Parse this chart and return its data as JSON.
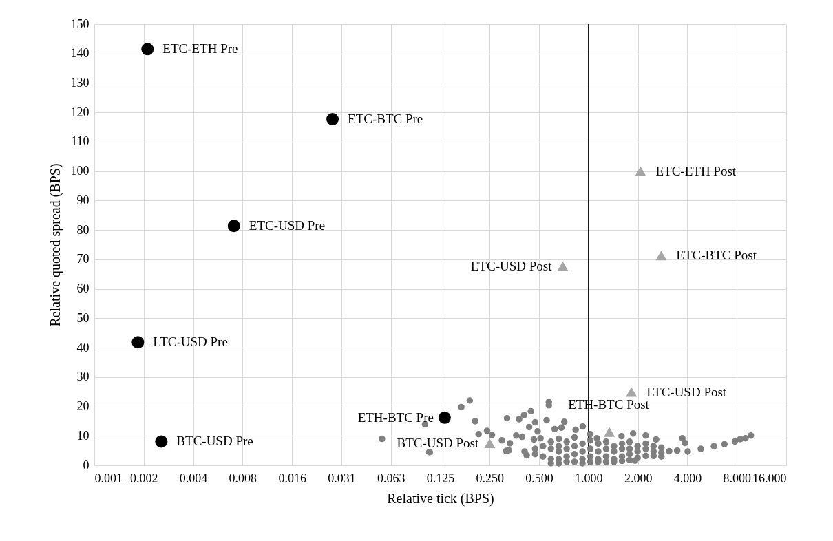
{
  "chart_data": {
    "type": "scatter",
    "xlabel": "Relative tick (BPS)",
    "ylabel": "Relative quoted spread (BPS)",
    "log": "x",
    "grid": true,
    "xlim": [
      0.0009765625,
      16
    ],
    "ylim": [
      0,
      150
    ],
    "xticks": [
      {
        "value": 0.0009765625,
        "label": "0.001"
      },
      {
        "value": 0.001953125,
        "label": "0.002"
      },
      {
        "value": 0.00390625,
        "label": "0.004"
      },
      {
        "value": 0.0078125,
        "label": "0.008"
      },
      {
        "value": 0.015625,
        "label": "0.016"
      },
      {
        "value": 0.03125,
        "label": "0.031"
      },
      {
        "value": 0.0625,
        "label": "0.063"
      },
      {
        "value": 0.125,
        "label": "0.125"
      },
      {
        "value": 0.25,
        "label": "0.250"
      },
      {
        "value": 0.5,
        "label": "0.500"
      },
      {
        "value": 1,
        "label": "1.000"
      },
      {
        "value": 2,
        "label": "2.000"
      },
      {
        "value": 4,
        "label": "4.000"
      },
      {
        "value": 8,
        "label": "8.000"
      },
      {
        "value": 16,
        "label": "16.000"
      }
    ],
    "yticks": [
      0,
      10,
      20,
      30,
      40,
      50,
      60,
      70,
      80,
      90,
      100,
      110,
      120,
      130,
      140,
      150
    ],
    "series": [
      {
        "color": "#7f7f7f",
        "marker": "circle",
        "x": [
          0.0552,
          0.101,
          0.107,
          0.108,
          0.168,
          0.189,
          0.204,
          0.214,
          0.241,
          0.258,
          0.297,
          0.319,
          0.332,
          0.315,
          0.327,
          0.378,
          0.405,
          0.446,
          0.363,
          0.394,
          0.435,
          0.473,
          0.408,
          0.42,
          0.49,
          0.465,
          0.51,
          0.556,
          0.573,
          0.573,
          0.622,
          0.684,
          0.712,
          0.835,
          0.922,
          1.026,
          1.125,
          0.473,
          0.473,
          0.528,
          0.528,
          0.59,
          0.59,
          0.59,
          0.59,
          0.659,
          0.659,
          0.659,
          0.659,
          0.659,
          0.736,
          0.736,
          0.736,
          0.736,
          0.822,
          0.822,
          0.822,
          0.822,
          0.919,
          0.919,
          0.919,
          0.919,
          1.026,
          1.026,
          1.026,
          1.026,
          1.146,
          1.146,
          1.146,
          1.146,
          1.28,
          1.28,
          1.28,
          1.28,
          1.43,
          1.43,
          1.43,
          1.43,
          1.6,
          1.6,
          1.6,
          1.6,
          1.78,
          1.78,
          1.78,
          1.78,
          1.99,
          1.99,
          1.99,
          2.23,
          2.23,
          2.23,
          2.49,
          2.49,
          2.49,
          2.78,
          2.78,
          3.1,
          3.47,
          1.92,
          2.78,
          4.02,
          5.81,
          7.8,
          9.05,
          9.75,
          1.59,
          1.87,
          2.23,
          2.58,
          3.73,
          3.87,
          4.83,
          6.73,
          8.4
        ],
        "values": [
          9.0,
          13.9,
          4.5,
          4.5,
          19.8,
          22.0,
          15.0,
          10.6,
          11.7,
          10.3,
          8.5,
          16.0,
          7.5,
          4.9,
          5.1,
          15.7,
          17.1,
          18.4,
          10.1,
          9.7,
          13.0,
          14.6,
          4.7,
          3.4,
          11.5,
          8.8,
          9.2,
          15.3,
          21.5,
          20.4,
          12.3,
          12.8,
          14.8,
          12.1,
          13.2,
          10.6,
          9.2,
          5.6,
          3.8,
          6.5,
          3.0,
          8.0,
          5.6,
          2.1,
          0.7,
          9.0,
          6.5,
          4.7,
          2.1,
          0.7,
          8.0,
          5.6,
          3.0,
          1.2,
          9.5,
          6.5,
          3.8,
          1.2,
          7.4,
          4.7,
          2.1,
          0.7,
          8.5,
          5.6,
          3.0,
          1.2,
          7.4,
          4.7,
          2.1,
          1.2,
          8.0,
          5.6,
          3.0,
          1.2,
          6.5,
          4.7,
          2.1,
          1.2,
          7.4,
          5.6,
          3.0,
          1.5,
          8.0,
          5.6,
          3.8,
          1.8,
          6.5,
          4.7,
          2.5,
          7.4,
          5.6,
          3.2,
          6.5,
          4.7,
          3.2,
          6.0,
          4.3,
          4.8,
          5.0,
          1.6,
          3.0,
          4.7,
          6.5,
          8.1,
          9.2,
          10.1,
          9.9,
          10.8,
          10.1,
          8.8,
          9.2,
          7.6,
          5.6,
          7.2,
          8.9
        ]
      },
      {
        "color": "#000000",
        "marker": "circle",
        "x": [
          0.00206,
          0.0276,
          0.00692,
          0.0018,
          0.133,
          0.0025
        ],
        "values": [
          141.5,
          117.7,
          81.4,
          41.8,
          16.2,
          8.1
        ]
      },
      {
        "color": "#a6a6a6",
        "marker": "triangle",
        "x": [
          2.075,
          2.77,
          0.697,
          1.825,
          1.34,
          0.25
        ],
        "values": [
          100.0,
          71.3,
          67.7,
          24.9,
          11.3,
          7.5
        ]
      }
    ],
    "ref_lines": [
      {
        "axis": "x",
        "value": 1,
        "color": "#000000"
      }
    ],
    "annotations": [
      {
        "text": "ETC-ETH Pre",
        "x": 0.00206,
        "y": 141.5
      },
      {
        "text": "ETC-BTC Pre",
        "x": 0.0276,
        "y": 117.7
      },
      {
        "text": "ETC-USD Pre",
        "x": 0.00692,
        "y": 81.4
      },
      {
        "text": "LTC-USD Pre",
        "x": 0.0018,
        "y": 41.8
      },
      {
        "text": "ETH-BTC Pre",
        "x": 0.133,
        "y": 16.2
      },
      {
        "text": "BTC-USD Pre",
        "x": 0.0025,
        "y": 8.1
      },
      {
        "text": "ETC-ETH Post",
        "x": 2.075,
        "y": 100.0
      },
      {
        "text": "ETC-BTC Post",
        "x": 2.77,
        "y": 71.3
      },
      {
        "text": "ETC-USD Post",
        "x": 0.697,
        "y": 67.7
      },
      {
        "text": "LTC-USD Post",
        "x": 1.825,
        "y": 24.9
      },
      {
        "text": "ETH-BTC Post",
        "x": 1.34,
        "y": 11.3
      },
      {
        "text": "BTC-USD Post",
        "x": 0.25,
        "y": 7.5
      }
    ]
  }
}
